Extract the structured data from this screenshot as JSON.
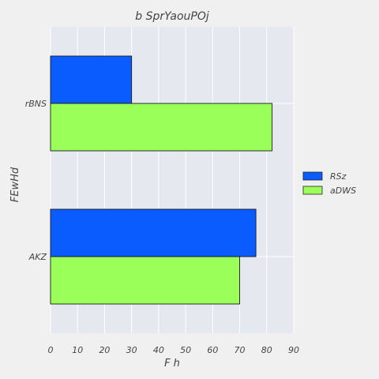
{
  "chart_data": {
    "type": "bar",
    "orientation": "horizontal",
    "title": "b SprYaouPOj",
    "xlabel": "F h",
    "ylabel": "FEwHd",
    "categories": [
      "rBNS",
      "AKZ"
    ],
    "series": [
      {
        "name": "RSz",
        "values": [
          30,
          76
        ],
        "color": "#0a5cff"
      },
      {
        "name": "aDWS",
        "values": [
          82,
          70
        ],
        "color": "#9bff5a"
      }
    ],
    "xlim": [
      0,
      90
    ],
    "xticks": [
      "0",
      "10",
      "20",
      "30",
      "40",
      "50",
      "60",
      "70",
      "80",
      "90"
    ],
    "grid": true,
    "legend_position": "right"
  }
}
